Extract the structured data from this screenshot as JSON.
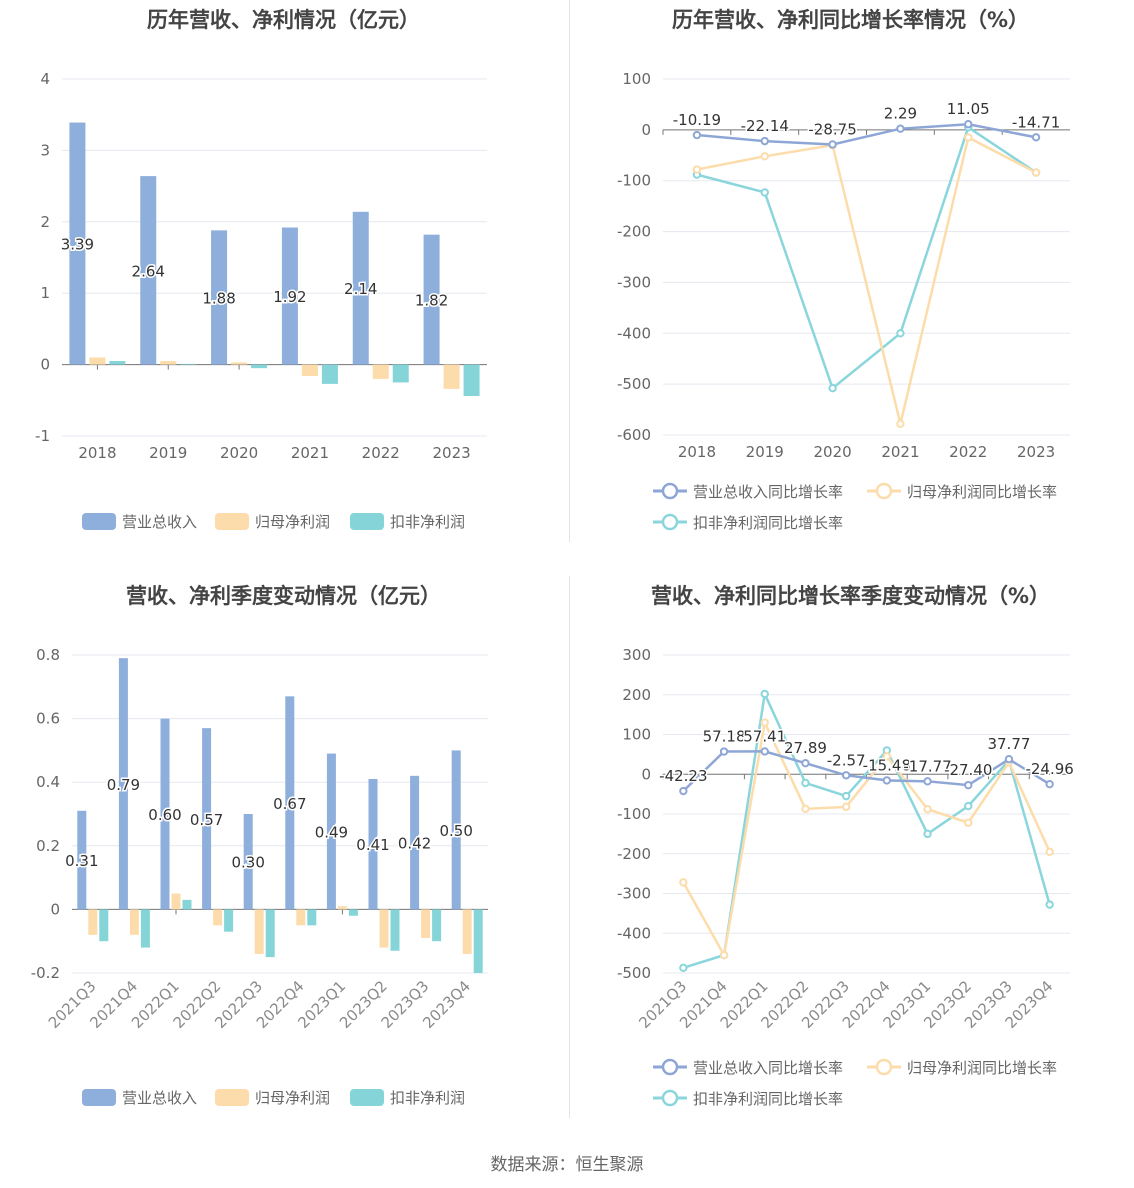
{
  "colors": {
    "revenue": "#8eaedc",
    "net_profit": "#fddcab",
    "deducted_profit": "#84d4d8",
    "revenue_line": "#8ea6d6",
    "net_profit_line": "#fddcab",
    "deducted_profit_line": "#8ad6dc"
  },
  "source": "数据来源：恒生聚源",
  "chart_data": [
    {
      "type": "bar",
      "title": "历年营收、净利情况（亿元）",
      "categories": [
        "2018",
        "2019",
        "2020",
        "2021",
        "2022",
        "2023"
      ],
      "ylim": [
        -1,
        4
      ],
      "yticks": [
        -1,
        0,
        1,
        2,
        3,
        4
      ],
      "grid": true,
      "legend_position": "bottom",
      "series": [
        {
          "name": "营业总收入",
          "values": [
            3.39,
            2.64,
            1.88,
            1.92,
            2.14,
            1.82
          ],
          "labels": [
            "3.39",
            "2.64",
            "1.88",
            "1.92",
            "2.14",
            "1.82"
          ]
        },
        {
          "name": "归母净利润",
          "values": [
            0.1,
            0.05,
            0.03,
            -0.16,
            -0.2,
            -0.34
          ]
        },
        {
          "name": "扣非净利润",
          "values": [
            0.05,
            0.01,
            -0.05,
            -0.27,
            -0.25,
            -0.44
          ]
        }
      ]
    },
    {
      "type": "line",
      "title": "历年营收、净利同比增长率情况（%）",
      "categories": [
        "2018",
        "2019",
        "2020",
        "2021",
        "2022",
        "2023"
      ],
      "ylim": [
        -600,
        100
      ],
      "yticks": [
        -600,
        -500,
        -400,
        -300,
        -200,
        -100,
        0,
        100
      ],
      "grid": true,
      "legend_position": "bottom",
      "series": [
        {
          "name": "营业总收入同比增长率",
          "values": [
            -10.19,
            -22.14,
            -28.75,
            2.29,
            11.05,
            -14.71
          ],
          "labels": [
            "-10.19",
            "-22.14",
            "-28.75",
            "2.29",
            "11.05",
            "-14.71"
          ]
        },
        {
          "name": "归母净利润同比增长率",
          "values": [
            -78,
            -52,
            -30,
            -578,
            -15,
            -84
          ]
        },
        {
          "name": "扣非净利润同比增长率",
          "values": [
            -88,
            -123,
            -508,
            -400,
            5,
            -84
          ]
        }
      ]
    },
    {
      "type": "bar",
      "title": "营收、净利季度变动情况（亿元）",
      "categories": [
        "2021Q3",
        "2021Q4",
        "2022Q1",
        "2022Q2",
        "2022Q3",
        "2022Q4",
        "2023Q1",
        "2023Q2",
        "2023Q3",
        "2023Q4"
      ],
      "ylim": [
        -0.2,
        0.8
      ],
      "yticks": [
        "-0.2",
        "0",
        "0.2",
        "0.4",
        "0.6",
        "0.8"
      ],
      "grid": true,
      "legend_position": "bottom",
      "series": [
        {
          "name": "营业总收入",
          "values": [
            0.31,
            0.79,
            0.6,
            0.57,
            0.3,
            0.67,
            0.49,
            0.41,
            0.42,
            0.5
          ],
          "labels": [
            "0.31",
            "0.79",
            "0.60",
            "0.57",
            "0.30",
            "0.67",
            "0.49",
            "0.41",
            "0.42",
            "0.50"
          ]
        },
        {
          "name": "归母净利润",
          "values": [
            -0.08,
            -0.08,
            0.05,
            -0.05,
            -0.14,
            -0.05,
            0.01,
            -0.12,
            -0.09,
            -0.14
          ]
        },
        {
          "name": "扣非净利润",
          "values": [
            -0.1,
            -0.12,
            0.03,
            -0.07,
            -0.15,
            -0.05,
            -0.02,
            -0.13,
            -0.1,
            -0.2
          ]
        }
      ]
    },
    {
      "type": "line",
      "title": "营收、净利同比增长率季度变动情况（%）",
      "categories": [
        "2021Q3",
        "2021Q4",
        "2022Q1",
        "2022Q2",
        "2022Q3",
        "2022Q4",
        "2023Q1",
        "2023Q2",
        "2023Q3",
        "2023Q4"
      ],
      "ylim": [
        -500,
        300
      ],
      "yticks": [
        -500,
        -400,
        -300,
        -200,
        -100,
        0,
        100,
        200,
        300
      ],
      "grid": true,
      "legend_position": "bottom",
      "series": [
        {
          "name": "营业总收入同比增长率",
          "values": [
            -42.23,
            57.18,
            57.41,
            27.89,
            -2.57,
            -15.48,
            -17.77,
            -27.4,
            37.77,
            -24.96
          ],
          "labels": [
            "-42.23",
            "57.18",
            "57.41",
            "27.89",
            "-2.57",
            "-15.48",
            "-17.77",
            "-27.40",
            "37.77",
            "-24.96"
          ]
        },
        {
          "name": "归母净利润同比增长率",
          "values": [
            -272,
            -455,
            130,
            -87,
            -82,
            45,
            -88,
            -122,
            30,
            -195
          ]
        },
        {
          "name": "扣非净利润同比增长率",
          "values": [
            -487,
            -455,
            202,
            -22,
            -55,
            60,
            -150,
            -80,
            35,
            -328
          ]
        }
      ]
    }
  ]
}
